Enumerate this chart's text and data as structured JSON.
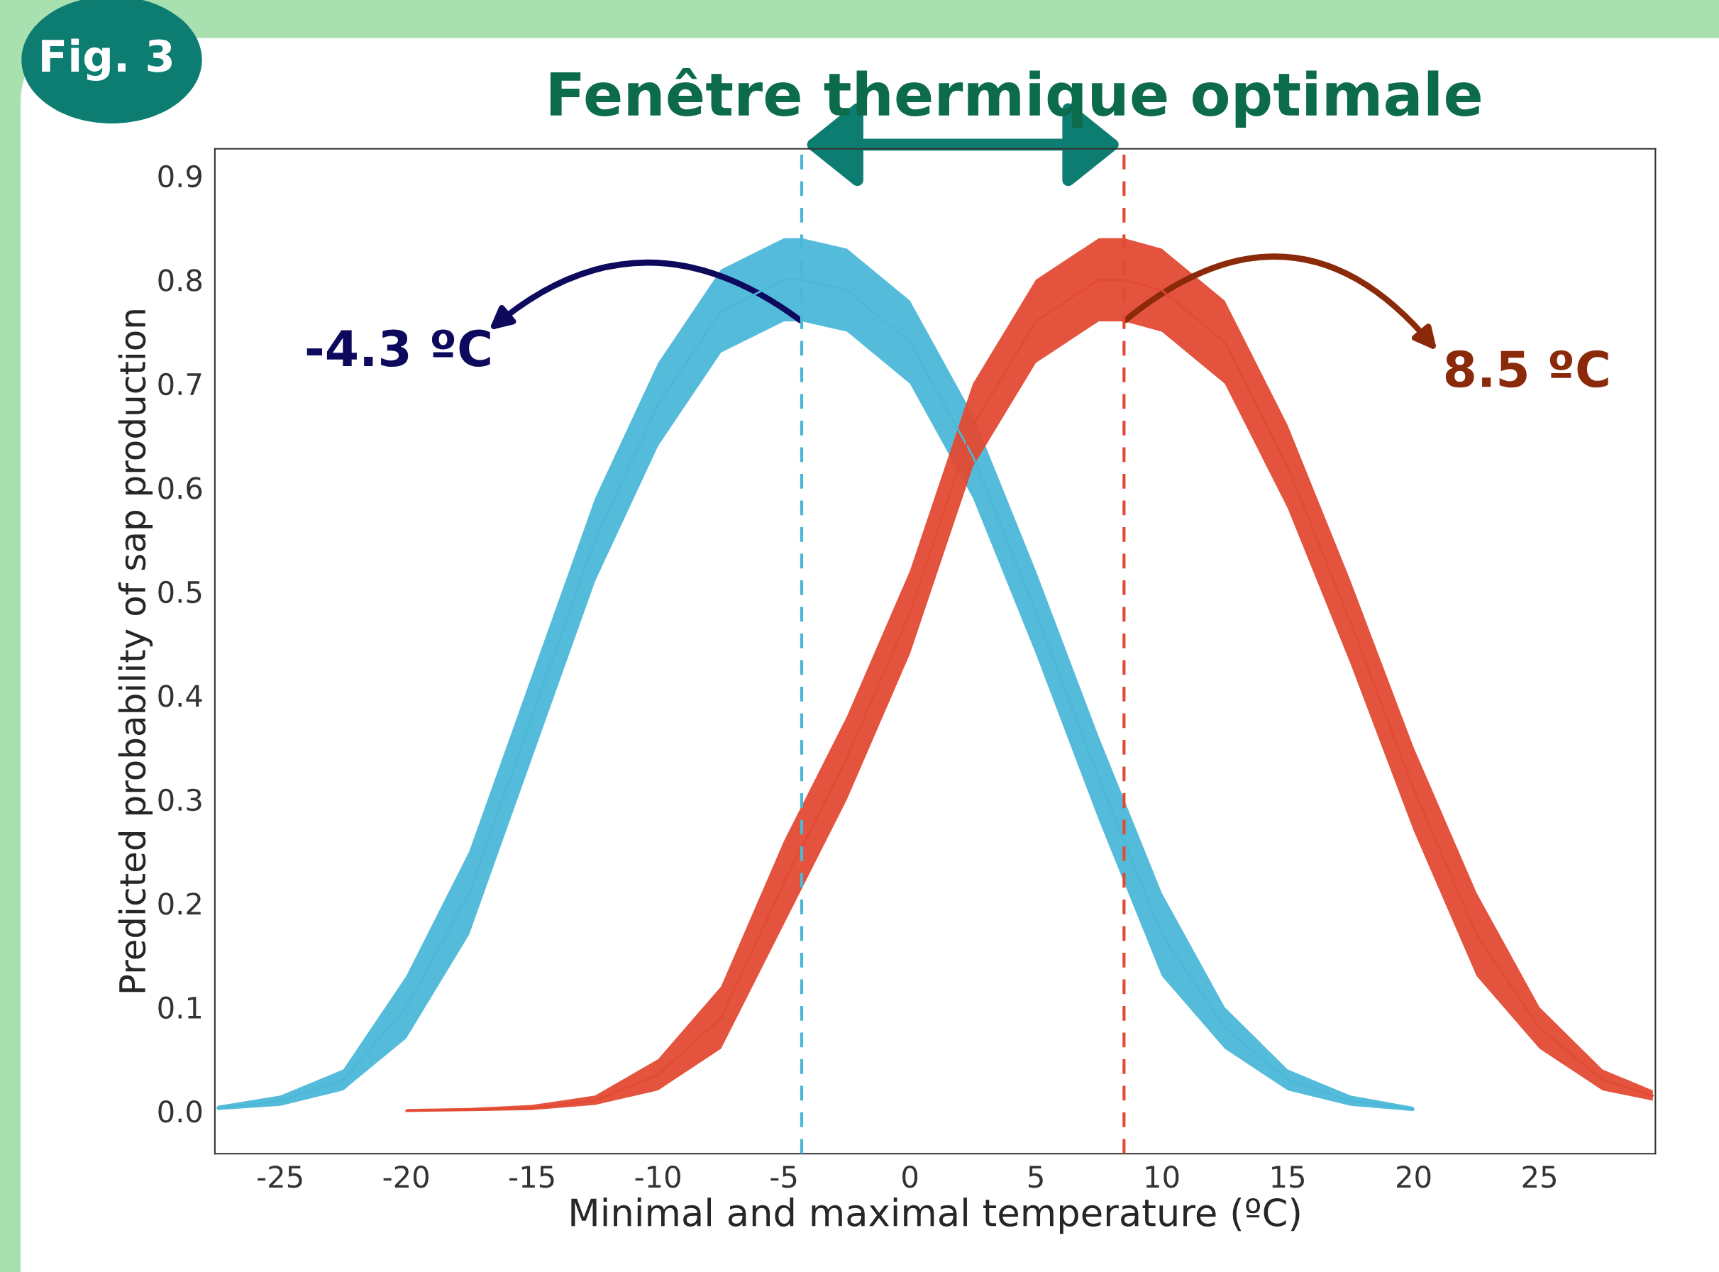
{
  "chart_data": {
    "type": "line",
    "title": "Fenêtre thermique optimale",
    "xlabel": "Minimal and maximal temperature (ºC)",
    "ylabel": "Predicted probability of sap production",
    "xlim": [
      -27.6,
      29.6
    ],
    "ylim": [
      -0.041,
      0.926
    ],
    "xticks": [
      -25,
      -20,
      -15,
      -10,
      -5,
      0,
      5,
      10,
      15,
      20,
      25
    ],
    "yticks": [
      {
        "value": 0,
        "label": "0.0"
      },
      0.1,
      0.2,
      0.3,
      0.4,
      0.5,
      0.6,
      0.7,
      0.8,
      0.9
    ],
    "grid": false,
    "legend": false,
    "marker": "none",
    "line_style": "solid",
    "series": [
      {
        "color": "#4bb8d8",
        "x": [
          -27.5,
          -25,
          -22.5,
          -20,
          -17.5,
          -15,
          -12.5,
          -10,
          -7.5,
          -5,
          -4.3,
          -2.5,
          0,
          2.5,
          5,
          7.5,
          10,
          12.5,
          15,
          17.5,
          20
        ],
        "values": [
          0.003,
          0.01,
          0.03,
          0.1,
          0.21,
          0.38,
          0.55,
          0.68,
          0.77,
          0.8,
          0.8,
          0.79,
          0.74,
          0.63,
          0.48,
          0.32,
          0.17,
          0.08,
          0.03,
          0.01,
          0.002
        ],
        "lower": [
          0.001,
          0.005,
          0.02,
          0.07,
          0.17,
          0.34,
          0.51,
          0.64,
          0.73,
          0.76,
          0.76,
          0.75,
          0.7,
          0.59,
          0.44,
          0.28,
          0.13,
          0.06,
          0.02,
          0.005,
          0.0
        ],
        "upper": [
          0.005,
          0.015,
          0.04,
          0.13,
          0.25,
          0.42,
          0.59,
          0.72,
          0.81,
          0.84,
          0.84,
          0.83,
          0.78,
          0.67,
          0.52,
          0.36,
          0.21,
          0.1,
          0.04,
          0.015,
          0.004
        ]
      },
      {
        "color": "#e34a33",
        "x": [
          -20,
          -17.5,
          -15,
          -12.5,
          -10,
          -7.5,
          -5,
          -2.5,
          0,
          2.5,
          5,
          7.5,
          8.5,
          10,
          12.5,
          15,
          17.5,
          20,
          22.5,
          25,
          27.5,
          29.5
        ],
        "values": [
          0.0,
          0.001,
          0.003,
          0.01,
          0.035,
          0.09,
          0.22,
          0.34,
          0.48,
          0.66,
          0.76,
          0.8,
          0.8,
          0.79,
          0.74,
          0.62,
          0.47,
          0.31,
          0.17,
          0.08,
          0.03,
          0.015
        ],
        "lower": [
          0.0,
          0.0,
          0.001,
          0.006,
          0.02,
          0.06,
          0.18,
          0.3,
          0.44,
          0.62,
          0.72,
          0.76,
          0.76,
          0.75,
          0.7,
          0.58,
          0.43,
          0.27,
          0.13,
          0.06,
          0.02,
          0.01
        ],
        "upper": [
          0.002,
          0.003,
          0.006,
          0.015,
          0.05,
          0.12,
          0.26,
          0.38,
          0.52,
          0.7,
          0.8,
          0.84,
          0.84,
          0.83,
          0.78,
          0.66,
          0.51,
          0.35,
          0.21,
          0.1,
          0.04,
          0.02
        ]
      }
    ],
    "ref_lines": [
      {
        "axis": "x",
        "value": -4.3,
        "color": "#4bb8d8",
        "line_style": "dashed"
      },
      {
        "axis": "x",
        "value": 8.5,
        "color": "#e34a33",
        "line_style": "dashed"
      }
    ],
    "annotations": [
      "Fig. 3",
      {
        "text": "-4.3 ºC",
        "x": -4.3,
        "y": 0.76
      },
      {
        "text": "8.5 ºC",
        "x": 8.5,
        "y": 0.76
      }
    ]
  }
}
